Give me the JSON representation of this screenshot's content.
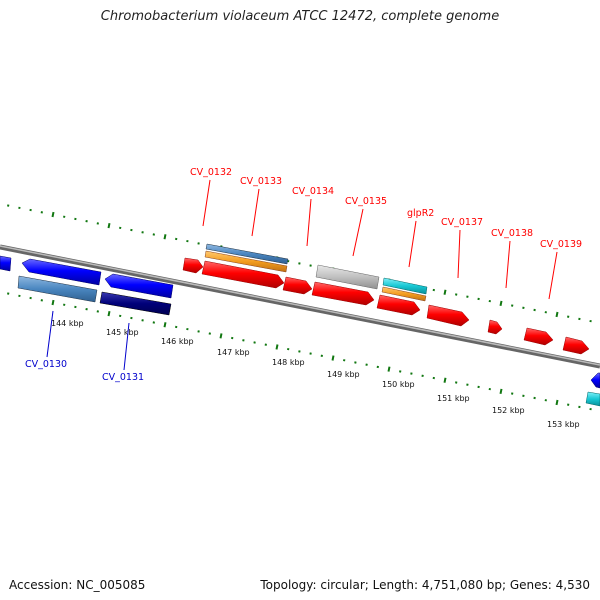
{
  "title": "Chromobacterium violaceum ATCC 12472, complete genome",
  "accession": "Accession: NC_005085",
  "summary": "Topology: circular; Length: 4,751,080 bp; Genes: 4,530",
  "colors": {
    "forward_gene": "#ff0000",
    "reverse_gene": "#0000ff",
    "forward_label": "#ff0000",
    "reverse_label": "#0000cc",
    "tick": "#117711",
    "backbone": "#888888",
    "rna_light_blue": "#4a86c0",
    "orange": "#f39d1f",
    "cyan": "#18c8d4",
    "gray": "#c0c0c0",
    "navy": "#00007a"
  },
  "kbp_labels": [
    "144 kbp",
    "145 kbp",
    "146 kbp",
    "147 kbp",
    "148 kbp",
    "149 kbp",
    "150 kbp",
    "151 kbp",
    "152 kbp",
    "153 kbp"
  ],
  "forward_labels": [
    "CV_0132",
    "CV_0133",
    "CV_0134",
    "CV_0135",
    "glpR2",
    "CV_0137",
    "CV_0138",
    "CV_0139"
  ],
  "reverse_labels": [
    "CV_0130",
    "CV_0131"
  ]
}
